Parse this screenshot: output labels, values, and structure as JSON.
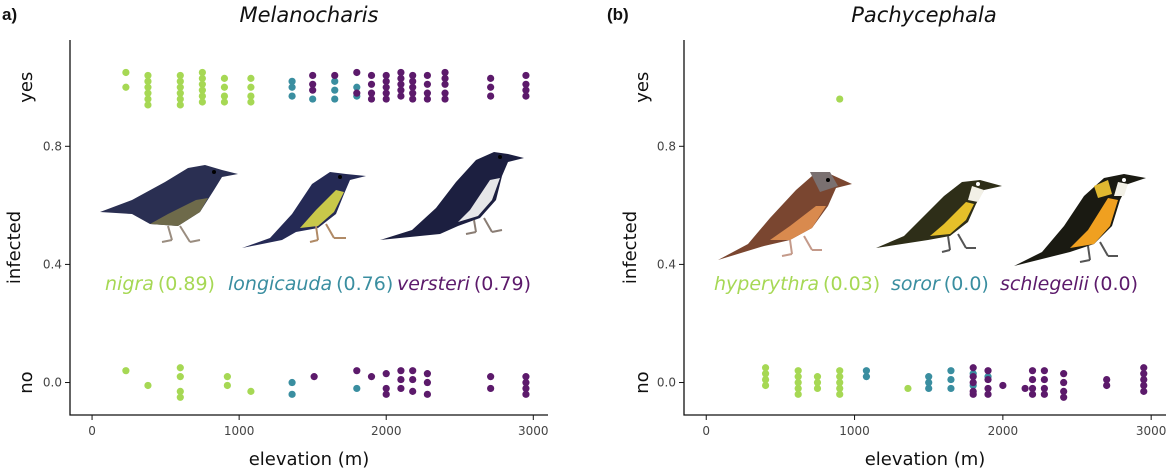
{
  "colors": {
    "species1": "#a6d854",
    "species2": "#3a8ea0",
    "species3": "#5c1a6b"
  },
  "chart_data": [
    {
      "type": "scatter",
      "panel_tag": "a)",
      "title": "Melanocharis",
      "xlabel": "elevation (m)",
      "ylabel": "infected",
      "xlim": [
        -150,
        3100
      ],
      "ylim": [
        -0.11,
        1.16
      ],
      "x_ticks": [
        0,
        1000,
        2000,
        3000
      ],
      "y_ticks": [
        0.0,
        0.4,
        0.8
      ],
      "y_tick_labels": [
        "0.0",
        "0.4",
        "0.8"
      ],
      "category_labels": [
        {
          "text": "no",
          "y": 0
        },
        {
          "text": "yes",
          "y": 1
        }
      ],
      "species": [
        {
          "name": "nigra",
          "prevalence_label": "(0.89)",
          "color": "#a6d854"
        },
        {
          "name": "longicauda",
          "prevalence_label": "(0.76)",
          "color": "#3a8ea0"
        },
        {
          "name": "versteri",
          "prevalence_label": "(0.79)",
          "color": "#5c1a6b"
        }
      ],
      "series": [
        {
          "name": "nigra",
          "color": "#a6d854",
          "points": [
            [
              230,
              1.05
            ],
            [
              230,
              1.0
            ],
            [
              380,
              1.04
            ],
            [
              380,
              1.02
            ],
            [
              380,
              1.0
            ],
            [
              380,
              0.98
            ],
            [
              380,
              0.96
            ],
            [
              380,
              0.94
            ],
            [
              600,
              1.04
            ],
            [
              600,
              1.02
            ],
            [
              600,
              1.0
            ],
            [
              600,
              0.98
            ],
            [
              600,
              0.96
            ],
            [
              600,
              0.94
            ],
            [
              750,
              1.05
            ],
            [
              750,
              1.03
            ],
            [
              750,
              1.01
            ],
            [
              750,
              0.99
            ],
            [
              750,
              0.97
            ],
            [
              750,
              0.95
            ],
            [
              900,
              1.03
            ],
            [
              900,
              1.0
            ],
            [
              900,
              0.97
            ],
            [
              900,
              0.95
            ],
            [
              1080,
              1.03
            ],
            [
              1080,
              1.0
            ],
            [
              1080,
              0.97
            ],
            [
              1080,
              0.95
            ],
            [
              230,
              0.04
            ],
            [
              380,
              -0.01
            ],
            [
              600,
              0.05
            ],
            [
              600,
              0.02
            ],
            [
              600,
              -0.03
            ],
            [
              600,
              -0.05
            ],
            [
              920,
              0.02
            ],
            [
              920,
              -0.01
            ],
            [
              1080,
              -0.03
            ]
          ]
        },
        {
          "name": "longicauda",
          "color": "#3a8ea0",
          "points": [
            [
              1360,
              1.02
            ],
            [
              1360,
              1.0
            ],
            [
              1360,
              0.97
            ],
            [
              1500,
              0.96
            ],
            [
              1650,
              1.02
            ],
            [
              1650,
              0.99
            ],
            [
              1650,
              0.96
            ],
            [
              1800,
              1.0
            ],
            [
              1800,
              0.97
            ],
            [
              1360,
              0.0
            ],
            [
              1360,
              -0.04
            ],
            [
              1800,
              -0.02
            ]
          ]
        },
        {
          "name": "versteri",
          "color": "#5c1a6b",
          "points": [
            [
              1500,
              1.04
            ],
            [
              1500,
              1.01
            ],
            [
              1500,
              0.99
            ],
            [
              1650,
              1.04
            ],
            [
              1800,
              1.05
            ],
            [
              1800,
              0.98
            ],
            [
              1900,
              1.04
            ],
            [
              1900,
              1.01
            ],
            [
              1900,
              0.98
            ],
            [
              1900,
              0.96
            ],
            [
              2000,
              1.04
            ],
            [
              2000,
              1.02
            ],
            [
              2000,
              1.0
            ],
            [
              2000,
              0.98
            ],
            [
              2000,
              0.96
            ],
            [
              2100,
              1.05
            ],
            [
              2100,
              1.03
            ],
            [
              2100,
              1.01
            ],
            [
              2100,
              0.99
            ],
            [
              2100,
              0.97
            ],
            [
              2180,
              1.04
            ],
            [
              2180,
              1.02
            ],
            [
              2180,
              1.0
            ],
            [
              2180,
              0.98
            ],
            [
              2180,
              0.96
            ],
            [
              2280,
              1.04
            ],
            [
              2280,
              1.01
            ],
            [
              2280,
              0.98
            ],
            [
              2280,
              0.96
            ],
            [
              2400,
              1.05
            ],
            [
              2400,
              1.03
            ],
            [
              2400,
              1.01
            ],
            [
              2400,
              0.98
            ],
            [
              2400,
              0.96
            ],
            [
              2710,
              1.03
            ],
            [
              2710,
              1.0
            ],
            [
              2710,
              0.97
            ],
            [
              2950,
              1.04
            ],
            [
              2950,
              1.01
            ],
            [
              2950,
              0.99
            ],
            [
              2950,
              0.97
            ],
            [
              1510,
              0.02
            ],
            [
              1800,
              0.04
            ],
            [
              1900,
              0.02
            ],
            [
              2000,
              0.03
            ],
            [
              2000,
              -0.02
            ],
            [
              2000,
              -0.04
            ],
            [
              2100,
              0.04
            ],
            [
              2100,
              0.01
            ],
            [
              2100,
              -0.02
            ],
            [
              2180,
              0.04
            ],
            [
              2180,
              0.01
            ],
            [
              2180,
              -0.03
            ],
            [
              2280,
              0.03
            ],
            [
              2280,
              0.0
            ],
            [
              2280,
              -0.04
            ],
            [
              2710,
              0.02
            ],
            [
              2710,
              -0.02
            ],
            [
              2950,
              0.02
            ],
            [
              2950,
              0.0
            ],
            [
              2950,
              -0.02
            ],
            [
              2950,
              -0.04
            ]
          ]
        }
      ]
    },
    {
      "type": "scatter",
      "panel_tag": "(b)",
      "title": "Pachycephala",
      "xlabel": "elevation (m)",
      "ylabel": "infected",
      "xlim": [
        -150,
        3100
      ],
      "ylim": [
        -0.11,
        1.16
      ],
      "x_ticks": [
        0,
        1000,
        2000,
        3000
      ],
      "y_ticks": [
        0.0,
        0.4,
        0.8
      ],
      "y_tick_labels": [
        "0.0",
        "0.4",
        "0.8"
      ],
      "category_labels": [
        {
          "text": "no",
          "y": 0
        },
        {
          "text": "yes",
          "y": 1
        }
      ],
      "species": [
        {
          "name": "hyperythra",
          "prevalence_label": "(0.03)",
          "color": "#a6d854"
        },
        {
          "name": "soror",
          "prevalence_label": "(0.0)",
          "color": "#3a8ea0"
        },
        {
          "name": "schlegelii",
          "prevalence_label": "(0.0)",
          "color": "#5c1a6b"
        }
      ],
      "series": [
        {
          "name": "hyperythra",
          "color": "#a6d854",
          "points": [
            [
              900,
              0.96
            ],
            [
              400,
              0.05
            ],
            [
              400,
              0.03
            ],
            [
              400,
              0.01
            ],
            [
              400,
              -0.01
            ],
            [
              620,
              0.04
            ],
            [
              620,
              0.02
            ],
            [
              620,
              0.0
            ],
            [
              620,
              -0.02
            ],
            [
              620,
              -0.04
            ],
            [
              750,
              0.02
            ],
            [
              750,
              0.0
            ],
            [
              750,
              -0.02
            ],
            [
              900,
              0.04
            ],
            [
              900,
              0.02
            ],
            [
              900,
              0.0
            ],
            [
              900,
              -0.02
            ],
            [
              900,
              -0.04
            ],
            [
              1360,
              -0.02
            ]
          ]
        },
        {
          "name": "soror",
          "color": "#3a8ea0",
          "points": [
            [
              1080,
              0.04
            ],
            [
              1080,
              0.02
            ],
            [
              1500,
              0.02
            ],
            [
              1500,
              0.0
            ],
            [
              1500,
              -0.02
            ],
            [
              1650,
              0.04
            ],
            [
              1650,
              0.01
            ],
            [
              1650,
              -0.02
            ],
            [
              1800,
              0.03
            ],
            [
              1800,
              -0.01
            ],
            [
              1900,
              0.02
            ]
          ]
        },
        {
          "name": "schlegelii",
          "color": "#5c1a6b",
          "points": [
            [
              1800,
              0.05
            ],
            [
              1800,
              0.02
            ],
            [
              1800,
              0.0
            ],
            [
              1800,
              -0.03
            ],
            [
              1800,
              -0.04
            ],
            [
              1900,
              0.04
            ],
            [
              1900,
              0.01
            ],
            [
              1900,
              -0.02
            ],
            [
              1900,
              -0.04
            ],
            [
              2000,
              -0.01
            ],
            [
              2150,
              -0.02
            ],
            [
              2200,
              0.04
            ],
            [
              2200,
              0.01
            ],
            [
              2200,
              -0.02
            ],
            [
              2200,
              -0.04
            ],
            [
              2280,
              0.04
            ],
            [
              2280,
              0.01
            ],
            [
              2280,
              -0.02
            ],
            [
              2280,
              -0.04
            ],
            [
              2410,
              0.03
            ],
            [
              2410,
              0.0
            ],
            [
              2410,
              -0.03
            ],
            [
              2410,
              -0.05
            ],
            [
              2700,
              0.01
            ],
            [
              2700,
              -0.01
            ],
            [
              2950,
              0.05
            ],
            [
              2950,
              0.03
            ],
            [
              2950,
              0.01
            ],
            [
              2950,
              -0.01
            ],
            [
              2950,
              -0.03
            ]
          ]
        }
      ]
    }
  ]
}
